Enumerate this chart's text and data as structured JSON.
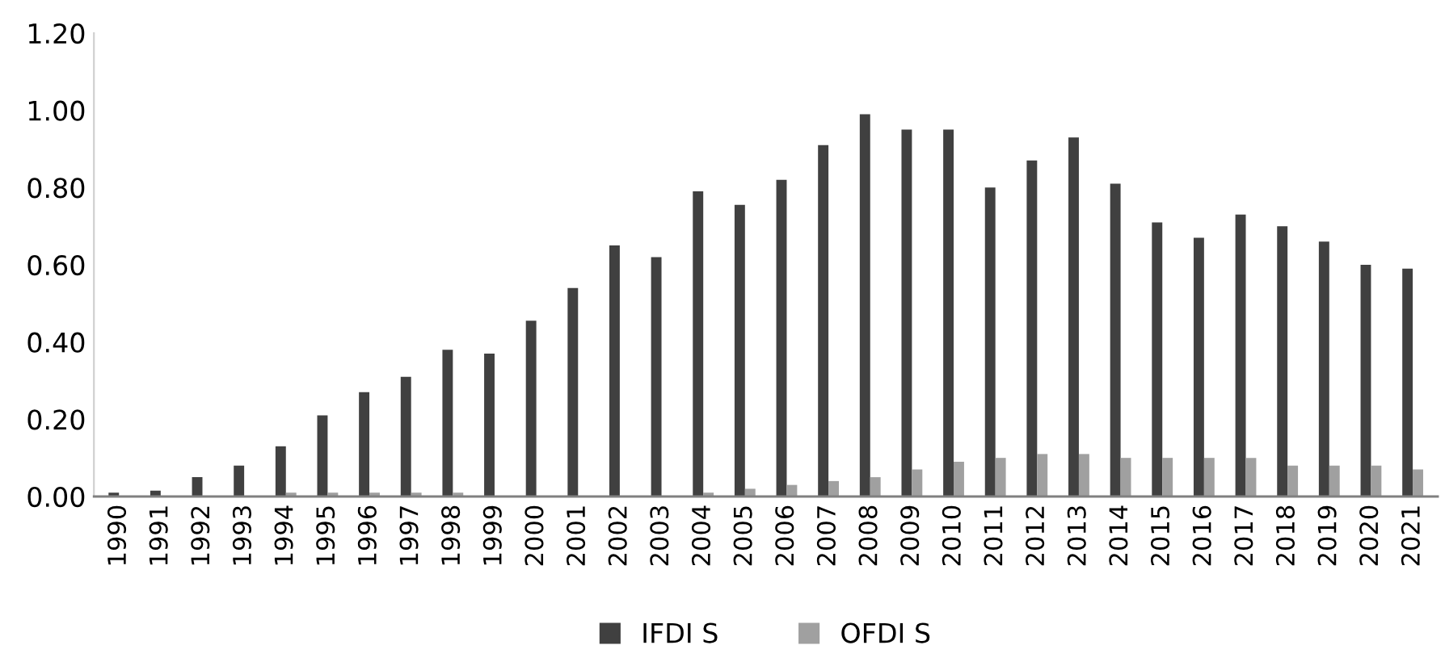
{
  "chart_data": {
    "type": "bar",
    "categories": [
      "1990",
      "1991",
      "1992",
      "1993",
      "1994",
      "1995",
      "1996",
      "1997",
      "1998",
      "1999",
      "2000",
      "2001",
      "2002",
      "2003",
      "2004",
      "2005",
      "2006",
      "2007",
      "2008",
      "2009",
      "2010",
      "2011",
      "2012",
      "2013",
      "2014",
      "2015",
      "2016",
      "2017",
      "2018",
      "2019",
      "2020",
      "2021"
    ],
    "series": [
      {
        "name": "IFDI S",
        "color": "#404040",
        "values": [
          0.01,
          0.015,
          0.05,
          0.08,
          0.13,
          0.21,
          0.27,
          0.31,
          0.38,
          0.37,
          0.455,
          0.54,
          0.65,
          0.62,
          0.79,
          0.755,
          0.82,
          0.91,
          0.99,
          0.95,
          0.95,
          0.8,
          0.87,
          0.93,
          0.81,
          0.71,
          0.67,
          0.73,
          0.7,
          0.66,
          0.6,
          0.59
        ]
      },
      {
        "name": "OFDI S",
        "color": "#a0a0a0",
        "values": [
          0.0,
          0.0,
          0.0,
          0.0,
          0.01,
          0.01,
          0.01,
          0.01,
          0.01,
          0.0,
          0.0,
          0.0,
          0.0,
          0.0,
          0.01,
          0.02,
          0.03,
          0.04,
          0.05,
          0.07,
          0.09,
          0.1,
          0.11,
          0.11,
          0.1,
          0.1,
          0.1,
          0.1,
          0.08,
          0.08,
          0.08,
          0.07
        ]
      }
    ],
    "ylim": [
      0,
      1.2
    ],
    "yticks": [
      {
        "value": 0,
        "label": "0.00"
      },
      {
        "value": 0.2,
        "label": "0.20"
      },
      {
        "value": 0.4,
        "label": "0.40"
      },
      {
        "value": 0.6,
        "label": "0.60"
      },
      {
        "value": 0.8,
        "label": "0.80"
      },
      {
        "value": 1.0,
        "label": "1.00"
      },
      {
        "value": 1.2,
        "label": "1.20"
      }
    ],
    "grid": false,
    "legend": "bottom"
  }
}
